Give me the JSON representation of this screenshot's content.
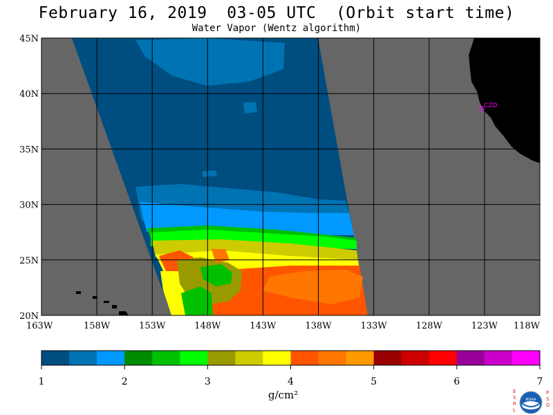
{
  "title": "February 16, 2019  03-05 UTC  (Orbit start time)",
  "subtitle": "Water Vapor (Wentz algorithm)",
  "map": {
    "lat_labels": [
      "45N",
      "40N",
      "35N",
      "30N",
      "25N",
      "20N"
    ],
    "lon_labels": [
      "163W",
      "158W",
      "153W",
      "148W",
      "143W",
      "138W",
      "133W",
      "128W",
      "123W",
      "118W"
    ],
    "station_label": "CZD",
    "lat_range": [
      20,
      45
    ],
    "lon_range": [
      -163,
      -118
    ],
    "colors": {
      "no_data": "#666666",
      "land": "#000000",
      "grid": "#000000",
      "station": "#ff00ff"
    }
  },
  "colorbar": {
    "unit": "g/cm²",
    "tick_labels": [
      "1",
      "2",
      "3",
      "4",
      "5",
      "6",
      "7"
    ],
    "range": [
      1,
      7
    ],
    "colors": [
      "#004d80",
      "#0073b3",
      "#0099ff",
      "#008c00",
      "#00c000",
      "#00ff00",
      "#999900",
      "#cccc00",
      "#ffff00",
      "#ff5500",
      "#ff7700",
      "#ff9900",
      "#990000",
      "#cc0000",
      "#ff0000",
      "#990099",
      "#cc00cc",
      "#ff00ff"
    ]
  },
  "logo": {
    "left_letters": [
      "E",
      "S",
      "R",
      "L"
    ],
    "right_letters": [
      "P",
      "S",
      "D"
    ],
    "center_text": "NOAA"
  }
}
